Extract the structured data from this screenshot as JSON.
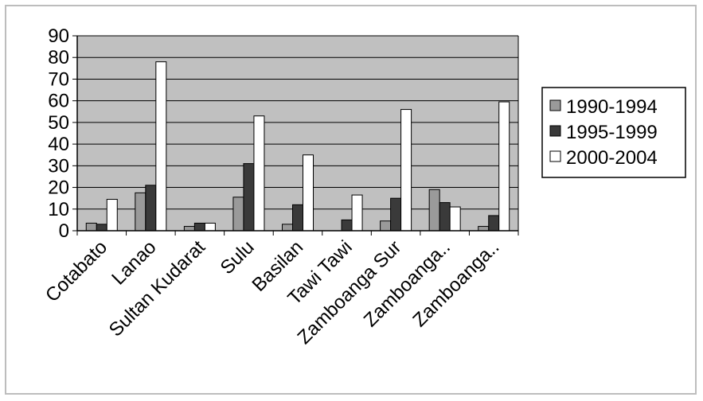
{
  "chart_data": {
    "type": "bar",
    "categories": [
      "Cotabato",
      "Lanao",
      "Sultan Kudarat",
      "Sulu",
      "Basilan",
      "Tawi Tawi",
      "Zamboanga Sur",
      "Zamboanga..",
      "Zamboanga.."
    ],
    "series": [
      {
        "name": "1990-1994",
        "color": "#9a9a9a",
        "values": [
          3.5,
          17.5,
          2,
          15.5,
          3,
          0,
          4.5,
          19,
          2
        ]
      },
      {
        "name": "1995-1999",
        "color": "#3a3a3a",
        "values": [
          3,
          21,
          3.5,
          31,
          12,
          5,
          15,
          13,
          7
        ]
      },
      {
        "name": "2000-2004",
        "color": "#ffffff",
        "values": [
          14.5,
          78,
          3.5,
          53,
          35,
          16.5,
          56,
          11,
          59.5
        ]
      }
    ],
    "yticks": [
      0,
      10,
      20,
      30,
      40,
      50,
      60,
      70,
      80,
      90
    ],
    "ylim": [
      0,
      90
    ],
    "title": "",
    "xlabel": "",
    "ylabel": "",
    "grid": true,
    "legend": "right",
    "plot_background": "#c0c0c0"
  }
}
